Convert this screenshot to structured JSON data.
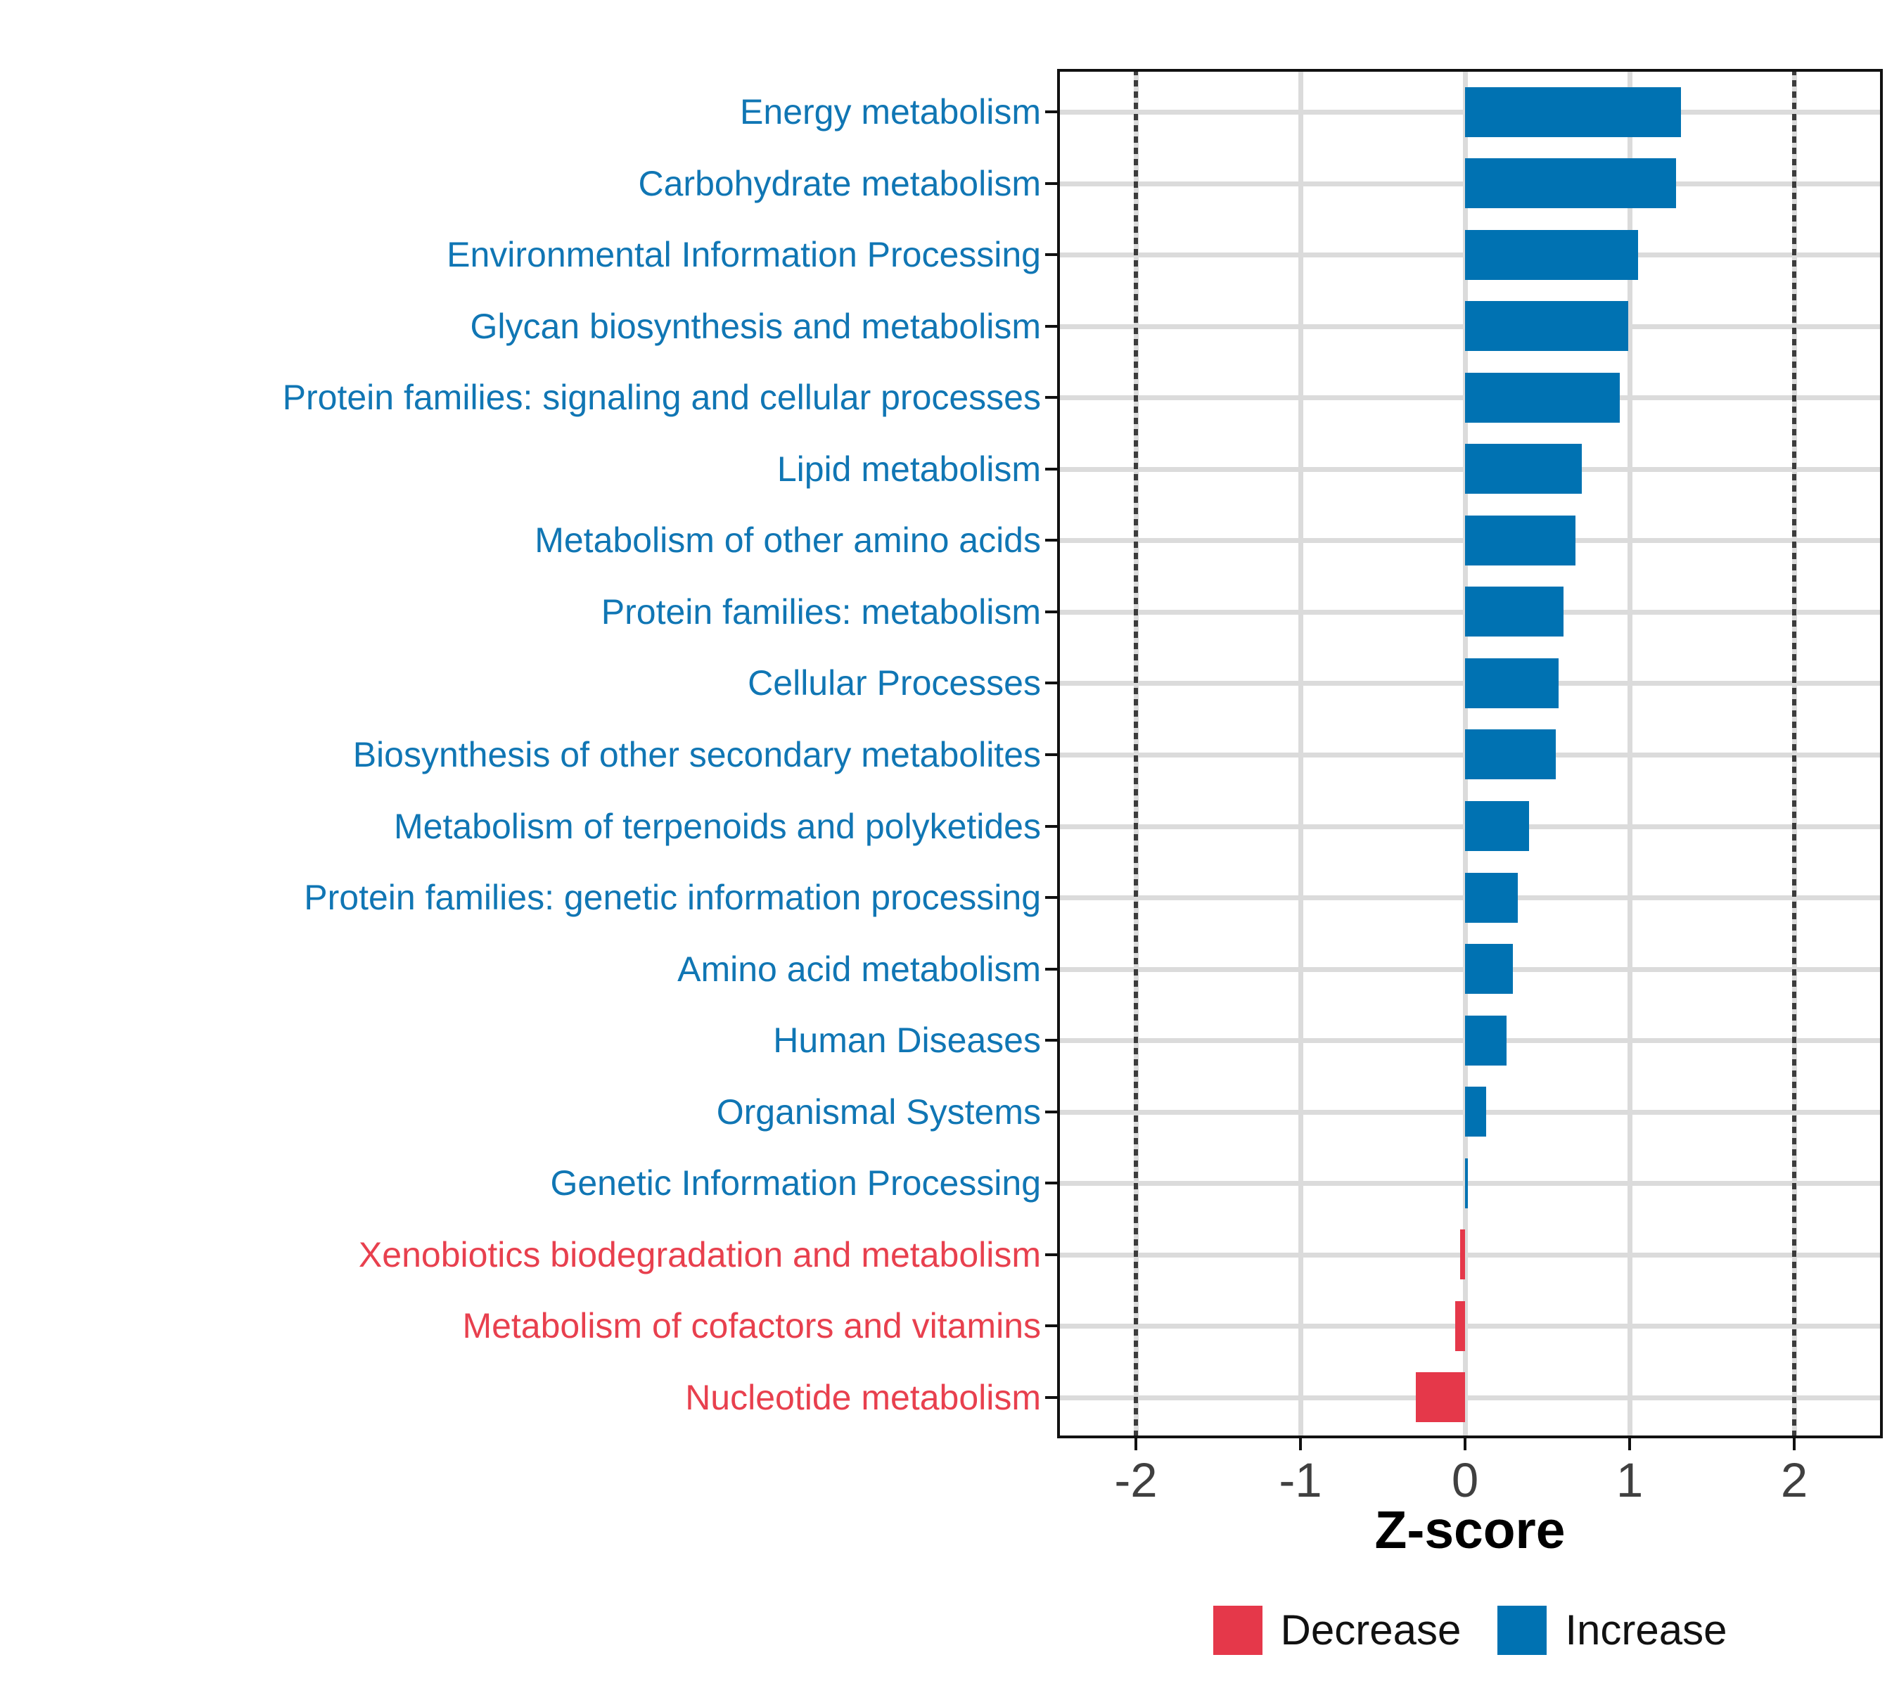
{
  "chart_data": {
    "type": "bar",
    "orientation": "horizontal",
    "title": "",
    "xlabel": "Z-score",
    "ylabel": "",
    "xlim": [
      -2.48,
      2.54
    ],
    "x_ticks": [
      -2,
      -1,
      0,
      1,
      2
    ],
    "x_tick_labels": [
      "-2",
      "-1",
      "0",
      "1",
      "2"
    ],
    "reference_lines_dotted": [
      -2,
      2
    ],
    "grid": "on",
    "legend_position": "bottom",
    "categories": [
      "Energy metabolism",
      "Carbohydrate metabolism",
      "Environmental Information Processing",
      "Glycan biosynthesis and metabolism",
      "Protein families: signaling and cellular processes",
      "Lipid metabolism",
      "Metabolism of other amino acids",
      "Protein families: metabolism",
      "Cellular Processes",
      "Biosynthesis of other secondary metabolites",
      "Metabolism of terpenoids and polyketides",
      "Protein families: genetic information processing",
      "Amino acid metabolism",
      "Human Diseases",
      "Organismal Systems",
      "Genetic Information Processing",
      "Xenobiotics biodegradation and metabolism",
      "Metabolism of cofactors and vitamins",
      "Nucleotide metabolism"
    ],
    "values": [
      1.31,
      1.28,
      1.05,
      0.99,
      0.94,
      0.71,
      0.67,
      0.6,
      0.57,
      0.55,
      0.39,
      0.32,
      0.29,
      0.25,
      0.13,
      0.015,
      -0.03,
      -0.06,
      -0.3
    ],
    "directions": [
      "Increase",
      "Increase",
      "Increase",
      "Increase",
      "Increase",
      "Increase",
      "Increase",
      "Increase",
      "Increase",
      "Increase",
      "Increase",
      "Increase",
      "Increase",
      "Increase",
      "Increase",
      "Increase",
      "Decrease",
      "Decrease",
      "Decrease"
    ],
    "legend": [
      {
        "label": "Decrease",
        "color": "#E5384A"
      },
      {
        "label": "Increase",
        "color": "#0072B2"
      }
    ],
    "style": {
      "bar_increase": "#0072B2",
      "bar_decrease": "#E5384A",
      "label_increase": "#1076B4",
      "label_decrease": "#E8404E",
      "axis_text": "#404040",
      "gridline": "#DBDBDB",
      "refline": "#3C3C3C",
      "panel_border": "#111111"
    }
  }
}
